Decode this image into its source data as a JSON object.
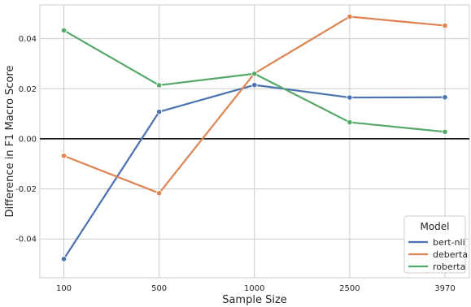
{
  "chart_data": {
    "type": "line",
    "title": "",
    "xlabel": "Sample Size",
    "ylabel": "Difference in F1 Macro Score",
    "categories": [
      "100",
      "500",
      "1000",
      "2500",
      "3970"
    ],
    "ylim": [
      -0.0555,
      0.0535
    ],
    "yticks": [
      "-0.04",
      "-0.02",
      "0.00",
      "0.02",
      "0.04"
    ],
    "grid": true,
    "reference_line": 0,
    "legend": {
      "title": "Model",
      "position": "bottom-right"
    },
    "series": [
      {
        "name": "bert-nli",
        "color": "#4c72b0",
        "values": [
          -0.048,
          0.0108,
          0.0215,
          0.0165,
          0.0166
        ]
      },
      {
        "name": "deberta",
        "color": "#dd8452",
        "values": [
          -0.0068,
          -0.0217,
          0.0261,
          0.0488,
          0.0452
        ]
      },
      {
        "name": "roberta",
        "color": "#55a868",
        "values": [
          0.0433,
          0.0214,
          0.026,
          0.0066,
          0.0028
        ]
      }
    ]
  }
}
